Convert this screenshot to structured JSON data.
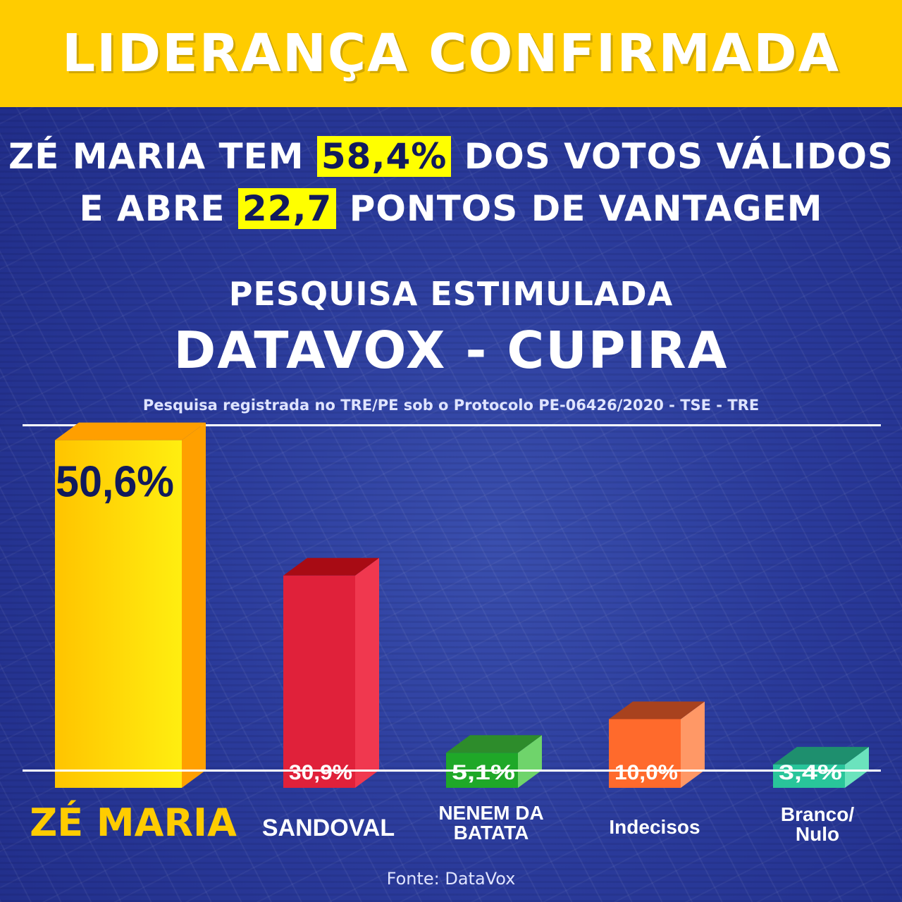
{
  "banner": {
    "title": "LIDERANÇA CONFIRMADA"
  },
  "headline": {
    "line1_before": "ZÉ MARIA TEM ",
    "line1_highlight": "58,4%",
    "line1_after": " DOS VOTOS VÁLIDOS",
    "line2_before": "E ABRE ",
    "line2_highlight": "22,7",
    "line2_after": " PONTOS DE VANTAGEM"
  },
  "survey": {
    "type": "PESQUISA ESTIMULADA",
    "name": "DATAVOX - CUPIRA",
    "registration": "Pesquisa registrada no TRE/PE sob o Protocolo PE-06426/2020 - TSE - TRE"
  },
  "source": "Fonte: DataVox",
  "colors": {
    "banner": "#ffcc00",
    "highlight": "#ffff00",
    "background": "#2a3a9a"
  },
  "chart_data": {
    "type": "bar",
    "categories": [
      "ZÉ MARIA",
      "SANDOVAL",
      "NENEM DA BATATA",
      "Indecisos",
      "Branco/ Nulo"
    ],
    "values": [
      50.6,
      30.9,
      5.1,
      10.0,
      3.4
    ],
    "value_labels": [
      "50,6%",
      "30,9%",
      "5,1%",
      "10,0%",
      "3,4%"
    ],
    "label_lines": [
      [
        "ZÉ MARIA"
      ],
      [
        "SANDOVAL"
      ],
      [
        "NENEM DA",
        "BATATA"
      ],
      [
        "Indecisos"
      ],
      [
        "Branco/",
        "Nulo"
      ]
    ],
    "bar_colors": [
      {
        "front": "#ffd600",
        "top": "#ff9f00",
        "side": "#ffa000"
      },
      {
        "front": "#e0213a",
        "top": "#a80b14",
        "side": "#f0384f"
      },
      {
        "front": "#1fa828",
        "top": "#2d8c2b",
        "side": "#6fd46b"
      },
      {
        "front": "#ff6a2c",
        "top": "#a8421e",
        "side": "#ff9866"
      },
      {
        "front": "#29c59a",
        "top": "#1e8f6e",
        "side": "#6be3bd"
      }
    ],
    "ylim": [
      0,
      55
    ],
    "grid": false,
    "title": "",
    "xlabel": "",
    "ylabel": ""
  }
}
